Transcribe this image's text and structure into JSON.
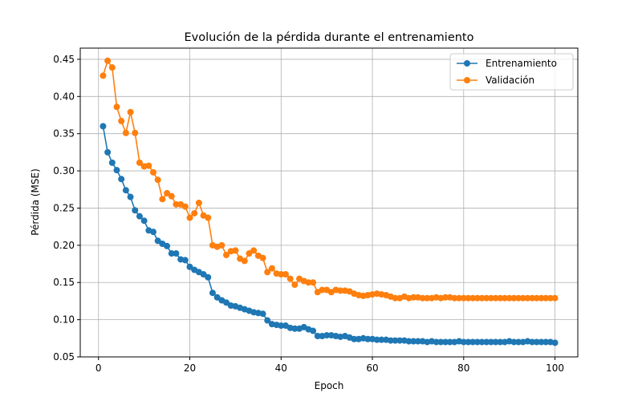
{
  "chart_data": {
    "type": "line",
    "title": "Evolución de la pérdida durante el entrenamiento",
    "xlabel": "Epoch",
    "ylabel": "Pérdida (MSE)",
    "xlim": [
      -4,
      105
    ],
    "ylim": [
      0.05,
      0.465
    ],
    "xticks": [
      0,
      20,
      40,
      60,
      80,
      100
    ],
    "yticks": [
      0.05,
      0.1,
      0.15,
      0.2,
      0.25,
      0.3,
      0.35,
      0.4,
      0.45
    ],
    "grid": true,
    "legend_position": "top-right",
    "x": [
      1,
      2,
      3,
      4,
      5,
      6,
      7,
      8,
      9,
      10,
      11,
      12,
      13,
      14,
      15,
      16,
      17,
      18,
      19,
      20,
      21,
      22,
      23,
      24,
      25,
      26,
      27,
      28,
      29,
      30,
      31,
      32,
      33,
      34,
      35,
      36,
      37,
      38,
      39,
      40,
      41,
      42,
      43,
      44,
      45,
      46,
      47,
      48,
      49,
      50,
      51,
      52,
      53,
      54,
      55,
      56,
      57,
      58,
      59,
      60,
      61,
      62,
      63,
      64,
      65,
      66,
      67,
      68,
      69,
      70,
      71,
      72,
      73,
      74,
      75,
      76,
      77,
      78,
      79,
      80,
      81,
      82,
      83,
      84,
      85,
      86,
      87,
      88,
      89,
      90,
      91,
      92,
      93,
      94,
      95,
      96,
      97,
      98,
      99,
      100
    ],
    "series": [
      {
        "name": "Entrenamiento",
        "color": "#1f77b4",
        "values": [
          0.36,
          0.325,
          0.311,
          0.301,
          0.289,
          0.274,
          0.265,
          0.247,
          0.239,
          0.233,
          0.22,
          0.218,
          0.206,
          0.202,
          0.199,
          0.189,
          0.189,
          0.181,
          0.18,
          0.171,
          0.167,
          0.164,
          0.161,
          0.157,
          0.136,
          0.13,
          0.126,
          0.123,
          0.119,
          0.118,
          0.116,
          0.114,
          0.112,
          0.11,
          0.109,
          0.108,
          0.099,
          0.094,
          0.093,
          0.092,
          0.092,
          0.089,
          0.088,
          0.088,
          0.09,
          0.087,
          0.085,
          0.078,
          0.078,
          0.079,
          0.079,
          0.078,
          0.077,
          0.078,
          0.076,
          0.074,
          0.074,
          0.075,
          0.074,
          0.074,
          0.073,
          0.073,
          0.073,
          0.072,
          0.072,
          0.072,
          0.072,
          0.071,
          0.071,
          0.071,
          0.071,
          0.07,
          0.071,
          0.07,
          0.07,
          0.07,
          0.07,
          0.07,
          0.071,
          0.07,
          0.07,
          0.07,
          0.07,
          0.07,
          0.07,
          0.07,
          0.07,
          0.07,
          0.07,
          0.071,
          0.07,
          0.07,
          0.07,
          0.071,
          0.07,
          0.07,
          0.07,
          0.07,
          0.07,
          0.069
        ]
      },
      {
        "name": "Validación",
        "color": "#ff7f0e",
        "values": [
          0.428,
          0.448,
          0.439,
          0.386,
          0.367,
          0.351,
          0.379,
          0.351,
          0.311,
          0.306,
          0.307,
          0.298,
          0.288,
          0.262,
          0.27,
          0.266,
          0.255,
          0.255,
          0.252,
          0.237,
          0.243,
          0.257,
          0.24,
          0.237,
          0.2,
          0.198,
          0.2,
          0.187,
          0.192,
          0.193,
          0.182,
          0.179,
          0.189,
          0.193,
          0.186,
          0.183,
          0.164,
          0.169,
          0.162,
          0.161,
          0.161,
          0.155,
          0.147,
          0.155,
          0.152,
          0.15,
          0.15,
          0.137,
          0.14,
          0.14,
          0.137,
          0.14,
          0.139,
          0.139,
          0.138,
          0.135,
          0.133,
          0.132,
          0.133,
          0.134,
          0.135,
          0.134,
          0.133,
          0.131,
          0.129,
          0.129,
          0.131,
          0.129,
          0.13,
          0.13,
          0.129,
          0.129,
          0.129,
          0.13,
          0.129,
          0.13,
          0.13,
          0.129,
          0.129,
          0.129,
          0.129,
          0.129,
          0.129,
          0.129,
          0.129,
          0.129,
          0.129,
          0.129,
          0.129,
          0.129,
          0.129,
          0.129,
          0.129,
          0.129,
          0.129,
          0.129,
          0.129,
          0.129,
          0.129,
          0.129
        ]
      }
    ]
  }
}
